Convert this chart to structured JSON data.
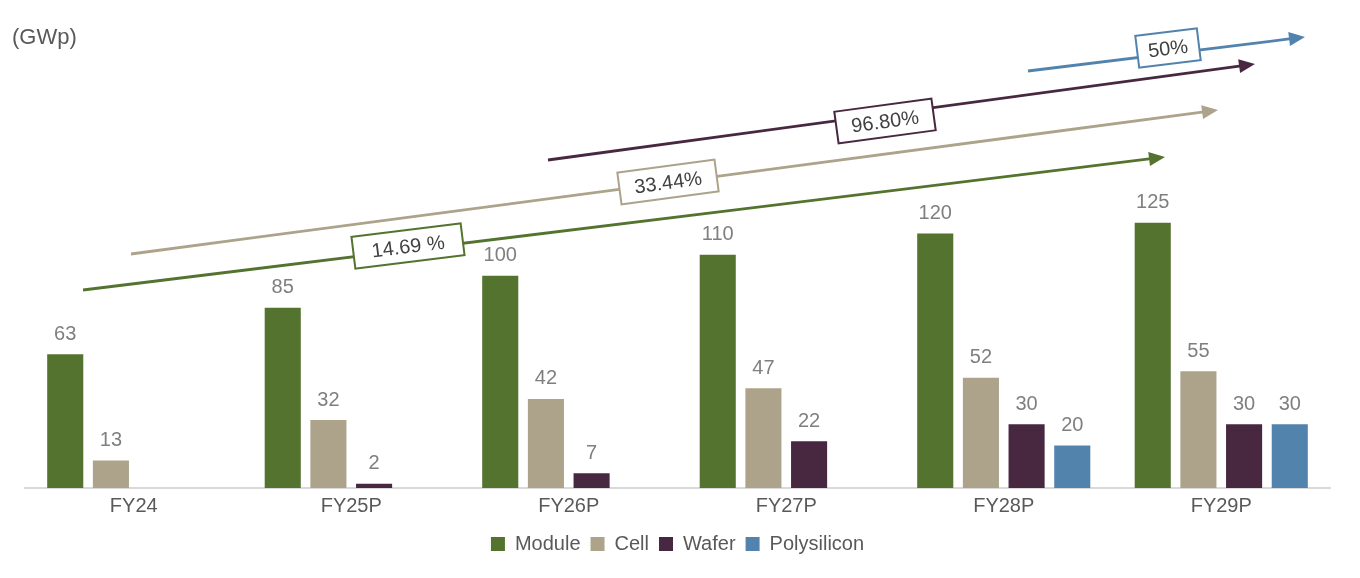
{
  "chart_data": {
    "type": "bar",
    "categories": [
      "FY24",
      "FY25P",
      "FY26P",
      "FY27P",
      "FY28P",
      "FY29P"
    ],
    "series": [
      {
        "name": "Module",
        "color": "#53732f",
        "values": [
          63,
          85,
          100,
          110,
          120,
          125
        ]
      },
      {
        "name": "Cell",
        "color": "#aca38a",
        "values": [
          13,
          32,
          42,
          47,
          52,
          55
        ]
      },
      {
        "name": "Wafer",
        "color": "#482840",
        "values": [
          null,
          2,
          7,
          22,
          30,
          30
        ]
      },
      {
        "name": "Polysilicon",
        "color": "#5283ad",
        "values": [
          null,
          null,
          null,
          null,
          20,
          30
        ]
      }
    ],
    "data_labels": true,
    "grid": false,
    "legend": "bottom",
    "annotations": [
      "(GWp)",
      "14.69 %",
      "33.44%",
      "96.80%",
      "50%"
    ]
  }
}
